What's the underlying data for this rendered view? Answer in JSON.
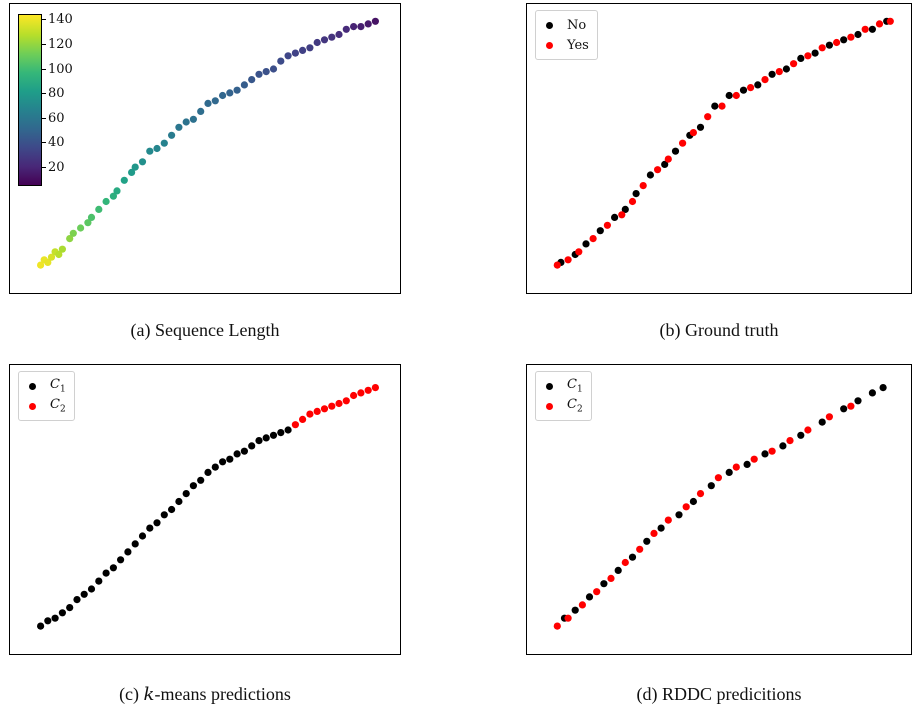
{
  "captions": {
    "a": "(a) Sequence Length",
    "b": "(b) Ground truth",
    "c_prefix": "(c) ",
    "c_var": "k",
    "c_suffix": "-means predictions",
    "d": "(d) RDDC predicitions"
  },
  "colors": {
    "black": "#000000",
    "red": "#ff0000"
  },
  "colorbar": {
    "ticks": [
      "140",
      "120",
      "100",
      "80",
      "60",
      "40",
      "20"
    ],
    "range": [
      8,
      148
    ],
    "colormap": "viridis"
  },
  "legends": {
    "b": [
      {
        "label": "No",
        "color": "#000000"
      },
      {
        "label": "Yes",
        "color": "#ff0000"
      }
    ],
    "c": [
      {
        "label": "C",
        "sub": "1",
        "color": "#000000"
      },
      {
        "label": "C",
        "sub": "2",
        "color": "#ff0000"
      }
    ],
    "d": [
      {
        "label": "C",
        "sub": "1",
        "color": "#000000"
      },
      {
        "label": "C",
        "sub": "2",
        "color": "#ff0000"
      }
    ]
  },
  "chart_data": [
    {
      "type": "scatter",
      "title": "(a) Sequence Length",
      "xlim": [
        0,
        100
      ],
      "ylim": [
        0,
        100
      ],
      "grid": false,
      "color_by": "sequence length",
      "colorbar_ticks": [
        20,
        40,
        60,
        80,
        100,
        120,
        140
      ],
      "x": [
        4,
        5,
        6,
        7,
        8,
        9,
        10,
        12,
        13,
        15,
        17,
        18,
        20,
        22,
        24,
        25,
        27,
        29,
        30,
        32,
        34,
        36,
        38,
        40,
        42,
        44,
        46,
        48,
        50,
        52,
        54,
        56,
        58,
        60,
        62,
        64,
        66,
        68,
        70,
        72,
        74,
        76,
        78,
        80,
        82,
        84,
        86,
        88,
        90,
        92,
        94,
        96
      ],
      "y": [
        6,
        8,
        7,
        9,
        11,
        10,
        12,
        16,
        18,
        20,
        22,
        24,
        27,
        30,
        32,
        34,
        38,
        41,
        43,
        45,
        49,
        50,
        52,
        55,
        58,
        60,
        61,
        64,
        67,
        68,
        70,
        71,
        72,
        74,
        76,
        78,
        79,
        80,
        83,
        85,
        86,
        87,
        88,
        90,
        91,
        92,
        93,
        95,
        96,
        96,
        97,
        98
      ],
      "c": [
        145,
        144,
        143,
        140,
        136,
        133,
        130,
        124,
        120,
        116,
        112,
        108,
        104,
        100,
        96,
        93,
        88,
        84,
        82,
        78,
        74,
        72,
        70,
        66,
        63,
        61,
        60,
        58,
        56,
        55,
        54,
        52,
        51,
        49,
        46,
        44,
        43,
        42,
        40,
        38,
        36,
        35,
        34,
        32,
        30,
        29,
        27,
        25,
        22,
        20,
        18,
        15
      ]
    },
    {
      "type": "scatter",
      "title": "(b) Ground truth",
      "xlim": [
        0,
        100
      ],
      "ylim": [
        0,
        100
      ],
      "legend_placement": "top-left",
      "series": [
        {
          "name": "No",
          "color": "#000000",
          "x": [
            5,
            9,
            12,
            16,
            20,
            23,
            26,
            30,
            34,
            37,
            41,
            44,
            48,
            52,
            56,
            60,
            64,
            68,
            72,
            76,
            80,
            84,
            88,
            92,
            96
          ],
          "y": [
            7,
            10,
            14,
            19,
            24,
            27,
            33,
            40,
            44,
            49,
            55,
            58,
            66,
            70,
            72,
            74,
            78,
            80,
            84,
            86,
            89,
            91,
            93,
            95,
            98
          ]
        },
        {
          "name": "Yes",
          "color": "#ff0000",
          "x": [
            4,
            7,
            10,
            14,
            18,
            22,
            25,
            28,
            32,
            35,
            39,
            42,
            46,
            50,
            54,
            58,
            62,
            66,
            70,
            74,
            78,
            82,
            86,
            90,
            94,
            97
          ],
          "y": [
            6,
            8,
            11,
            16,
            21,
            25,
            30,
            36,
            42,
            46,
            52,
            56,
            62,
            66,
            70,
            73,
            76,
            79,
            82,
            85,
            88,
            90,
            92,
            95,
            97,
            98
          ]
        }
      ]
    },
    {
      "type": "scatter",
      "title": "(c) k-means predictions",
      "xlim": [
        0,
        100
      ],
      "ylim": [
        0,
        100
      ],
      "legend_placement": "top-left",
      "series": [
        {
          "name": "C1",
          "color": "#000000",
          "x": [
            4,
            6,
            8,
            10,
            12,
            14,
            16,
            18,
            20,
            22,
            24,
            26,
            28,
            30,
            32,
            34,
            36,
            38,
            40,
            42,
            44,
            46,
            48,
            50,
            52,
            54,
            56,
            58,
            60,
            62,
            64,
            66,
            68,
            70,
            72
          ],
          "y": [
            6,
            8,
            9,
            11,
            13,
            16,
            18,
            20,
            23,
            26,
            28,
            31,
            34,
            37,
            40,
            43,
            45,
            48,
            50,
            53,
            56,
            59,
            61,
            64,
            66,
            68,
            69,
            71,
            72,
            74,
            76,
            77,
            78,
            79,
            80
          ]
        },
        {
          "name": "C2",
          "color": "#ff0000",
          "x": [
            74,
            76,
            78,
            80,
            82,
            84,
            86,
            88,
            90,
            92,
            94,
            96
          ],
          "y": [
            82,
            84,
            86,
            87,
            88,
            89,
            90,
            91,
            93,
            94,
            95,
            96
          ]
        }
      ]
    },
    {
      "type": "scatter",
      "title": "(d) RDDC predicitions",
      "xlim": [
        0,
        100
      ],
      "ylim": [
        0,
        100
      ],
      "legend_placement": "top-left",
      "series": [
        {
          "name": "C1",
          "color": "#000000",
          "x": [
            6,
            9,
            13,
            17,
            21,
            25,
            29,
            33,
            38,
            42,
            47,
            52,
            57,
            62,
            67,
            72,
            78,
            84,
            88,
            92,
            95
          ],
          "y": [
            9,
            12,
            17,
            22,
            27,
            32,
            38,
            43,
            48,
            53,
            59,
            64,
            67,
            71,
            74,
            78,
            83,
            88,
            91,
            94,
            96
          ]
        },
        {
          "name": "C2",
          "color": "#ff0000",
          "x": [
            4,
            7,
            11,
            15,
            19,
            23,
            27,
            31,
            35,
            40,
            44,
            49,
            54,
            59,
            64,
            69,
            74,
            80,
            86
          ],
          "y": [
            6,
            9,
            14,
            19,
            24,
            30,
            35,
            41,
            46,
            51,
            56,
            62,
            66,
            69,
            72,
            76,
            80,
            85,
            89
          ]
        }
      ]
    }
  ]
}
